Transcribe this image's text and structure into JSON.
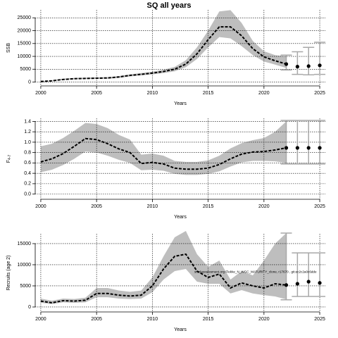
{
  "chart_data": [
    {
      "type": "line",
      "title": "SQ all years",
      "xlabel": "Years",
      "ylabel": "SSB",
      "x": [
        2000,
        2001,
        2002,
        2003,
        2004,
        2005,
        2006,
        2007,
        2008,
        2009,
        2010,
        2011,
        2012,
        2013,
        2014,
        2015,
        2016,
        2017,
        2018,
        2019,
        2020,
        2021,
        2022
      ],
      "values": [
        200,
        500,
        1000,
        1300,
        1400,
        1500,
        1600,
        2000,
        2600,
        3000,
        3500,
        4100,
        5000,
        7000,
        11000,
        16500,
        21500,
        21500,
        18000,
        13000,
        9800,
        8300,
        7000
      ],
      "lower": [
        100,
        400,
        800,
        1100,
        1200,
        1300,
        1300,
        1600,
        2200,
        2600,
        3000,
        3500,
        4200,
        5800,
        9000,
        13500,
        17500,
        17000,
        14000,
        10500,
        8000,
        6800,
        5500
      ],
      "upper": [
        300,
        700,
        1300,
        1600,
        1700,
        1800,
        1900,
        2300,
        3000,
        3500,
        4000,
        4800,
        5900,
        8500,
        13500,
        20000,
        27500,
        28000,
        23000,
        16000,
        12000,
        10500,
        10000
      ],
      "projection": {
        "x": [
          2022,
          2023,
          2024,
          2025
        ],
        "values": [
          7000,
          6000,
          6200,
          6500
        ],
        "lower": [
          4700,
          3000,
          2800,
          3000
        ],
        "upper": [
          10500,
          11800,
          13500,
          15500
        ]
      },
      "xlim": [
        1999.5,
        2025.5
      ],
      "ylim": [
        -1500,
        28100
      ],
      "xticks": [
        2000,
        2005,
        2010,
        2015,
        2020,
        2025
      ],
      "yticks": [
        0,
        5000,
        10000,
        15000,
        20000,
        25000
      ],
      "grid": true,
      "band_color": "#bebebe",
      "line_color": "#000000",
      "point_color": "#000000",
      "errorbar_color": "#a8a8a8"
    },
    {
      "type": "line",
      "xlabel": "Years",
      "ylabel": {
        "main": "F",
        "sub": "4-7"
      },
      "x": [
        2000,
        2001,
        2002,
        2003,
        2004,
        2005,
        2006,
        2007,
        2008,
        2009,
        2010,
        2011,
        2012,
        2013,
        2014,
        2015,
        2016,
        2017,
        2018,
        2019,
        2020,
        2021,
        2022
      ],
      "values": [
        0.62,
        0.68,
        0.78,
        0.92,
        1.07,
        1.05,
        0.97,
        0.87,
        0.8,
        0.59,
        0.61,
        0.58,
        0.5,
        0.48,
        0.48,
        0.5,
        0.57,
        0.68,
        0.77,
        0.81,
        0.82,
        0.85,
        0.89
      ],
      "lower": [
        0.42,
        0.47,
        0.56,
        0.68,
        0.82,
        0.8,
        0.74,
        0.66,
        0.6,
        0.46,
        0.47,
        0.45,
        0.39,
        0.37,
        0.37,
        0.39,
        0.44,
        0.53,
        0.61,
        0.64,
        0.64,
        0.63,
        0.6
      ],
      "upper": [
        0.92,
        0.97,
        1.08,
        1.22,
        1.37,
        1.35,
        1.27,
        1.14,
        1.05,
        0.76,
        0.78,
        0.74,
        0.64,
        0.62,
        0.62,
        0.65,
        0.74,
        0.88,
        0.98,
        1.04,
        1.08,
        1.2,
        1.4
      ],
      "projection": {
        "x": [
          2022,
          2023,
          2024,
          2025
        ],
        "values": [
          0.89,
          0.89,
          0.89,
          0.89
        ],
        "lower": [
          0.58,
          0.58,
          0.58,
          0.58
        ],
        "upper": [
          1.42,
          1.42,
          1.42,
          1.42
        ]
      },
      "xlim": [
        1999.5,
        2025.5
      ],
      "ylim": [
        -0.1,
        1.46
      ],
      "xticks": [
        2000,
        2005,
        2010,
        2015,
        2020,
        2025
      ],
      "yticks": [
        {
          "value": 0,
          "label": "0.0"
        },
        0.2,
        0.4,
        0.6,
        0.8,
        {
          "value": 1,
          "label": "1.0"
        },
        1.2,
        1.4
      ],
      "grid": true,
      "band_color": "#bebebe",
      "line_color": "#000000",
      "point_color": "#000000",
      "errorbar_color": "#a8a8a8"
    },
    {
      "type": "line",
      "xlabel": "Years",
      "ylabel": "Recruits (age 2)",
      "annotation": "stockassessment.org Flekke_N_WGC_MATURITY_clone, r17670 , git:ec2c2a0c6dde",
      "x": [
        2000,
        2001,
        2002,
        2003,
        2004,
        2005,
        2006,
        2007,
        2008,
        2009,
        2010,
        2011,
        2012,
        2013,
        2014,
        2015,
        2016,
        2017,
        2018,
        2019,
        2020,
        2021,
        2022
      ],
      "values": [
        1400,
        1000,
        1500,
        1400,
        1600,
        3200,
        3200,
        2800,
        2600,
        2800,
        5000,
        9000,
        12000,
        12500,
        8500,
        7000,
        7800,
        4500,
        5700,
        5000,
        4500,
        5500,
        5200
      ],
      "lower": [
        1000,
        700,
        1100,
        1000,
        1100,
        2300,
        2300,
        2000,
        1900,
        2000,
        3500,
        6500,
        8500,
        9000,
        6000,
        5500,
        5500,
        3200,
        4000,
        3200,
        2800,
        2500,
        1800
      ],
      "upper": [
        2000,
        1500,
        2000,
        1900,
        2200,
        4500,
        4500,
        3900,
        3600,
        3900,
        7000,
        12000,
        16500,
        18000,
        12500,
        9500,
        11000,
        6500,
        8500,
        7500,
        11000,
        15000,
        17500
      ],
      "projection": {
        "x": [
          2022,
          2023,
          2024,
          2025
        ],
        "values": [
          5200,
          5500,
          6000,
          5700
        ],
        "lower": [
          1700,
          2500,
          2500,
          2500
        ],
        "upper": [
          17500,
          12800,
          12800,
          12800
        ]
      },
      "xlim": [
        1999.5,
        2025.5
      ],
      "ylim": [
        -1170,
        17330
      ],
      "xticks": [
        2000,
        2005,
        2010,
        2015,
        2020,
        2025
      ],
      "yticks": [
        0,
        5000,
        10000,
        15000
      ],
      "grid": true,
      "band_color": "#bebebe",
      "line_color": "#000000",
      "point_color": "#000000",
      "errorbar_color": "#a8a8a8"
    }
  ]
}
